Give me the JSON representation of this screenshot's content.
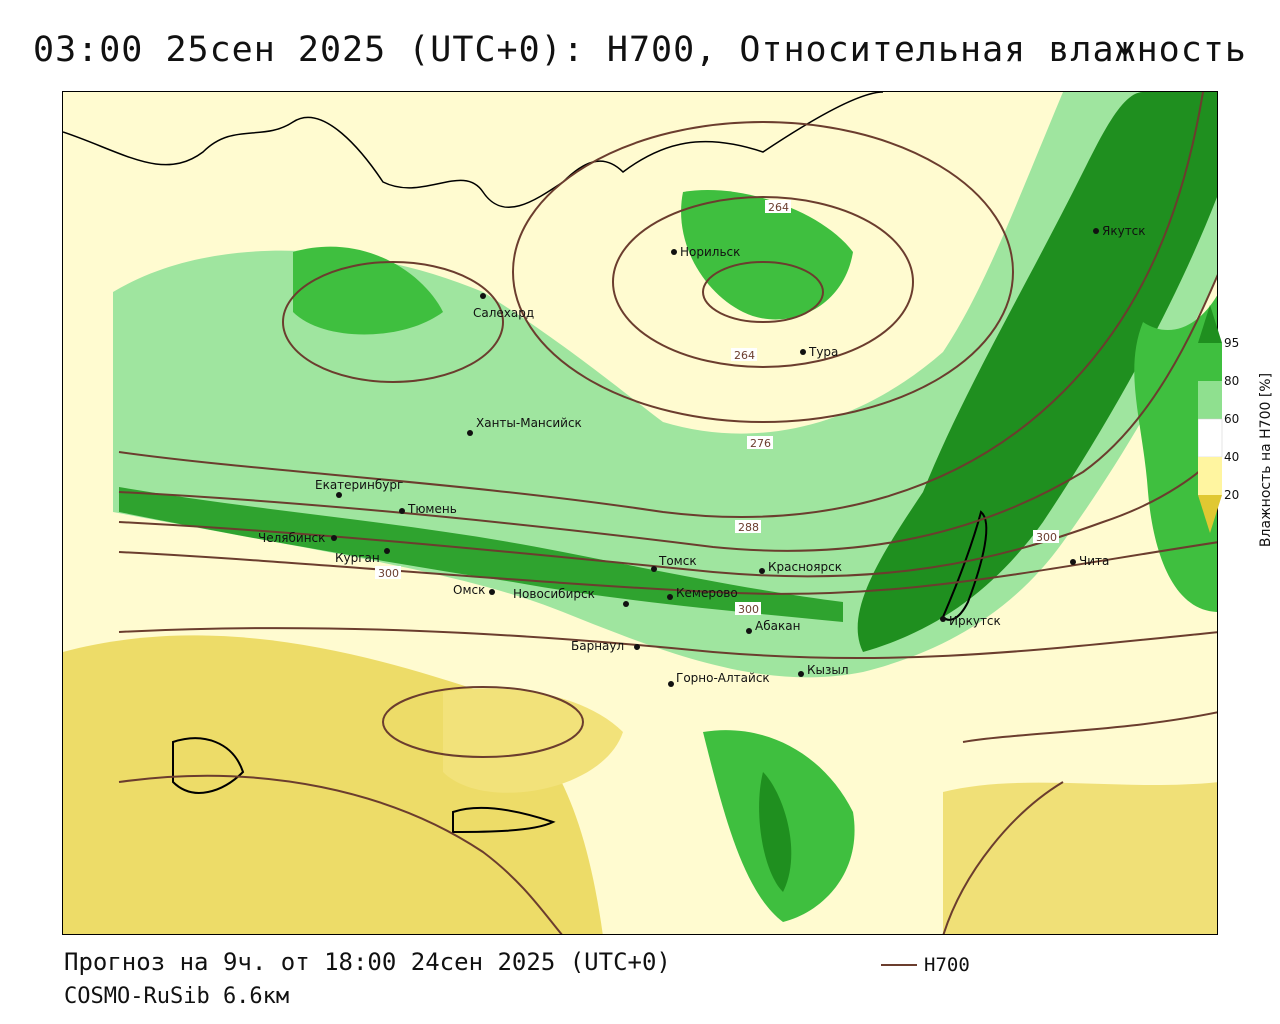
{
  "title": "03:00 25сен 2025 (UTC+0): H700, Относительная влажность",
  "forecast": "Прогноз на 9ч. от 18:00 24сен 2025 (UTC+0)",
  "model": "COSMO-RuSib 6.6км",
  "legend": {
    "line_label": "H700",
    "line_color": "#6b3d2e"
  },
  "colorbar": {
    "title": "Влажность на H700 [%]",
    "ticks": [
      "95",
      "80",
      "60",
      "40",
      "20"
    ],
    "colors": [
      "#1f8f1f",
      "#3fbf3f",
      "#8fe08f",
      "#ffffff",
      "#fff5a0",
      "#e0c832"
    ]
  },
  "isoline_labels": [
    "264",
    "264",
    "276",
    "288",
    "300",
    "300",
    "300"
  ],
  "cities": [
    {
      "name": "Норильск"
    },
    {
      "name": "Якутск"
    },
    {
      "name": "Салехард"
    },
    {
      "name": "Тура"
    },
    {
      "name": "Ханты-Мансийск"
    },
    {
      "name": "Екатеринбург"
    },
    {
      "name": "Тюмень"
    },
    {
      "name": "Челябинск"
    },
    {
      "name": "Курган"
    },
    {
      "name": "Томск"
    },
    {
      "name": "Красноярск"
    },
    {
      "name": "Омск"
    },
    {
      "name": "Новосибирск"
    },
    {
      "name": "Кемерово"
    },
    {
      "name": "Абакан"
    },
    {
      "name": "Барнаул"
    },
    {
      "name": "Горно-Алтайск"
    },
    {
      "name": "Кызыл"
    },
    {
      "name": "Иркутск"
    },
    {
      "name": "Чита"
    }
  ]
}
